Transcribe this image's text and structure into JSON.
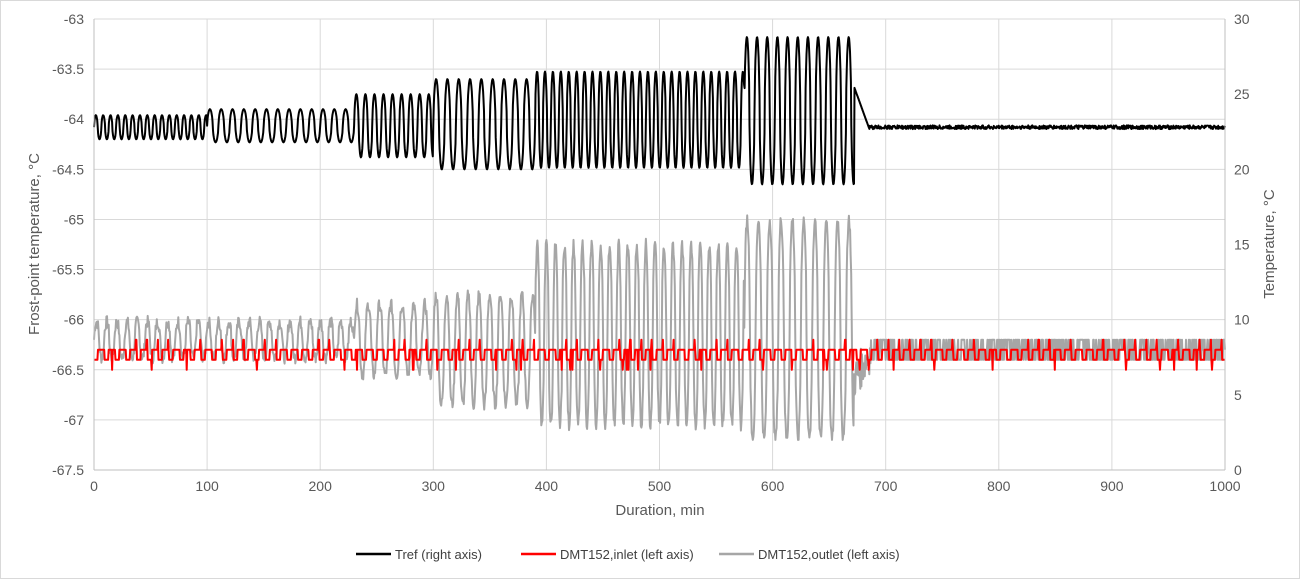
{
  "chart_data": {
    "type": "line",
    "title": "",
    "xlabel": "Duration, min",
    "ylabel_left": "Frost-point temperature, °C",
    "ylabel_right": "Temperature, °C",
    "xlim": [
      0,
      1000
    ],
    "ylim_left": [
      -67.5,
      -63
    ],
    "ylim_right": [
      0,
      30
    ],
    "x_ticks": [
      "0",
      "100",
      "200",
      "300",
      "400",
      "500",
      "600",
      "700",
      "800",
      "900",
      "1000"
    ],
    "y_left_ticks": [
      "-63",
      "-63.5",
      "-64",
      "-64.5",
      "-65",
      "-65.5",
      "-66",
      "-66.5",
      "-67",
      "-67.5"
    ],
    "y_right_ticks": [
      "30",
      "25",
      "20",
      "15",
      "10",
      "5",
      "0"
    ],
    "grid": true,
    "legend_position": "bottom",
    "colors": {
      "tref": "#000000",
      "inlet": "#ff0000",
      "outlet": "#a6a6a6",
      "grid": "#d9d9d9"
    },
    "series": [
      {
        "name": "Tref (right axis)",
        "axis": "right",
        "segments": [
          {
            "x0": 0,
            "x1": 100,
            "base": 22.8,
            "amp": 0.8,
            "period": 6.5
          },
          {
            "x0": 100,
            "x1": 230,
            "base": 22.9,
            "amp": 1.1,
            "period": 10
          },
          {
            "x0": 230,
            "x1": 300,
            "base": 22.9,
            "amp": 2.1,
            "period": 8
          },
          {
            "x0": 300,
            "x1": 390,
            "base": 23.0,
            "amp": 3.0,
            "period": 10
          },
          {
            "x0": 390,
            "x1": 575,
            "base": 23.3,
            "amp": 3.2,
            "period": 7
          },
          {
            "x0": 575,
            "x1": 672,
            "base": 23.9,
            "amp": 4.9,
            "period": 9
          }
        ],
        "steady": {
          "x0": 685,
          "x1": 1000,
          "value": 22.8
        }
      },
      {
        "name": "DMT152,inlet (left axis)",
        "axis": "left",
        "baseline": -66.3,
        "low": -66.4,
        "high": -66.2,
        "period": 9.5
      },
      {
        "name": "DMT152,outlet (left axis)",
        "axis": "left",
        "segments": [
          {
            "x0": 0,
            "x1": 230,
            "base": -66.2,
            "amp": 0.18,
            "period": 9
          },
          {
            "x0": 230,
            "x1": 300,
            "base": -66.2,
            "amp": 0.35,
            "period": 10
          },
          {
            "x0": 300,
            "x1": 390,
            "base": -66.3,
            "amp": 0.55,
            "period": 9.5
          },
          {
            "x0": 390,
            "x1": 575,
            "base": -66.15,
            "amp": 0.9,
            "period": 8
          },
          {
            "x0": 575,
            "x1": 672,
            "base": -66.1,
            "amp": 1.1,
            "period": 10
          }
        ],
        "steady": {
          "x0": 688,
          "x1": 1000,
          "low": -66.4,
          "high": -66.2
        }
      }
    ]
  }
}
